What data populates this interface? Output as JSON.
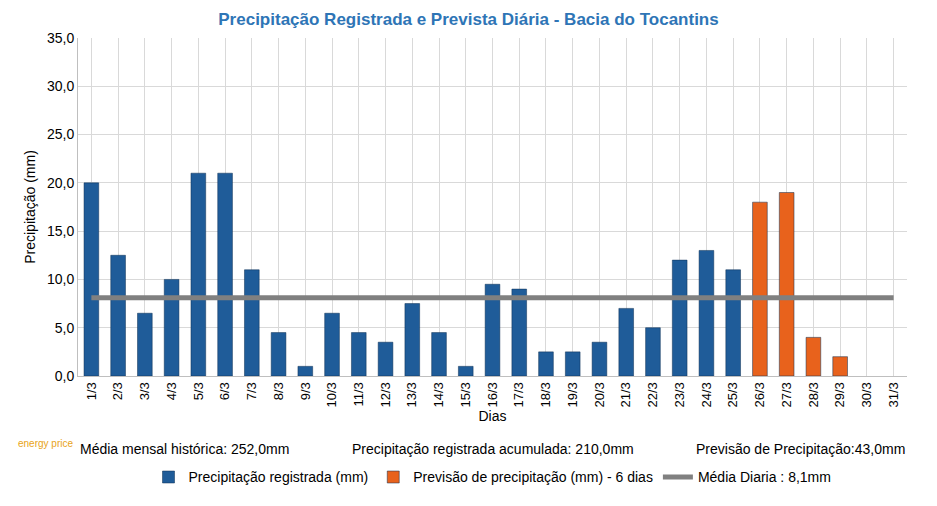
{
  "chart_data": {
    "type": "bar",
    "title": "Precipitação Registrada e Prevista Diária - Bacia do Tocantins",
    "x_label": "Dias",
    "y_label": "Precipitação (mm)",
    "categories": [
      "1/3",
      "2/3",
      "3/3",
      "4/3",
      "5/3",
      "6/3",
      "7/3",
      "8/3",
      "9/3",
      "10/3",
      "11/3",
      "12/3",
      "13/3",
      "14/3",
      "15/3",
      "16/3",
      "17/3",
      "18/3",
      "19/3",
      "20/3",
      "21/3",
      "22/3",
      "23/3",
      "24/3",
      "25/3",
      "26/3",
      "27/3",
      "28/3",
      "29/3",
      "30/3",
      "31/3"
    ],
    "series": [
      {
        "name": "Precipitação registrada (mm)",
        "type": "bar",
        "color": "#1f5c99",
        "values": [
          20,
          12.5,
          6.5,
          10,
          21,
          21,
          11,
          4.5,
          1,
          6.5,
          4.5,
          3.5,
          7.5,
          4.5,
          1,
          9.5,
          9,
          2.5,
          2.5,
          3.5,
          7,
          5,
          12,
          13,
          11,
          null,
          null,
          null,
          null,
          null,
          null
        ]
      },
      {
        "name": "Previsão de precipitação (mm) - 6 dias",
        "type": "bar",
        "color": "#e8621c",
        "values": [
          null,
          null,
          null,
          null,
          null,
          null,
          null,
          null,
          null,
          null,
          null,
          null,
          null,
          null,
          null,
          null,
          null,
          null,
          null,
          null,
          null,
          null,
          null,
          null,
          null,
          18,
          19,
          4,
          2,
          null,
          null
        ]
      },
      {
        "name": "Média Diaria : 8,1mm",
        "type": "line",
        "color": "#808080",
        "line_style": "solid",
        "values": [
          8.1,
          8.1,
          8.1,
          8.1,
          8.1,
          8.1,
          8.1,
          8.1,
          8.1,
          8.1,
          8.1,
          8.1,
          8.1,
          8.1,
          8.1,
          8.1,
          8.1,
          8.1,
          8.1,
          8.1,
          8.1,
          8.1,
          8.1,
          8.1,
          8.1,
          8.1,
          8.1,
          8.1,
          8.1,
          8.1,
          8.1
        ]
      }
    ],
    "ylim": [
      0,
      35
    ],
    "yticks": [
      {
        "value": 0,
        "label": "0,0"
      },
      {
        "value": 5,
        "label": "5,0"
      },
      {
        "value": 10,
        "label": "10,0"
      },
      {
        "value": 15,
        "label": "15,0"
      },
      {
        "value": 20,
        "label": "20,0"
      },
      {
        "value": 25,
        "label": "25,0"
      },
      {
        "value": 30,
        "label": "30,0"
      },
      {
        "value": 35,
        "label": "35,0"
      }
    ],
    "grid": true,
    "legend": "bottom",
    "annotations": [
      "Média mensal histórica: 252,0mm",
      "Precipitação registrada acumulada: 210,0mm",
      "Previsão de Precipitação:43,0mm",
      "energy price"
    ]
  }
}
